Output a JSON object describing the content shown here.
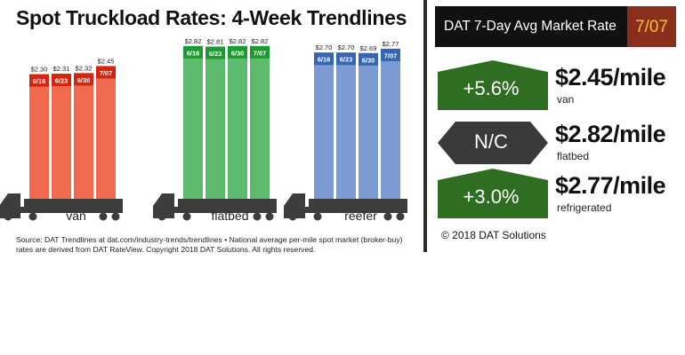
{
  "title": "Spot Truckload Rates: 4-Week Trendlines",
  "source": "Source: DAT Trendlines at dat.com/industry-trends/trendlines • National average per-mile spot market (broker-buy) rates are derived from DAT RateView. Copyright 2018 DAT Solutions. All rights reserved.",
  "chart_data": [
    {
      "type": "bar",
      "name": "van",
      "categories": [
        "6/16",
        "6/23",
        "6/30",
        "7/07"
      ],
      "values": [
        2.3,
        2.31,
        2.32,
        2.45
      ],
      "value_labels": [
        "$2.30",
        "$2.31",
        "$2.32",
        "$2.45"
      ],
      "label": "van",
      "color": "#ef6a4e",
      "date_color": "#d62411",
      "ylim": [
        0,
        2.9
      ]
    },
    {
      "type": "bar",
      "name": "flatbed",
      "categories": [
        "6/16",
        "6/23",
        "6/30",
        "7/07"
      ],
      "values": [
        2.82,
        2.81,
        2.82,
        2.82
      ],
      "value_labels": [
        "$2.82",
        "$2.81",
        "$2.82",
        "$2.82"
      ],
      "label": "flatbed",
      "color": "#5dbb6e",
      "date_color": "#1d9a2f",
      "ylim": [
        0,
        2.9
      ]
    },
    {
      "type": "bar",
      "name": "reefer",
      "categories": [
        "6/16",
        "6/23",
        "6/30",
        "7/07"
      ],
      "values": [
        2.7,
        2.7,
        2.69,
        2.77
      ],
      "value_labels": [
        "$2.70",
        "$2.70",
        "$2.69",
        "$2.77"
      ],
      "label": "reefer",
      "color": "#7b9bd2",
      "date_color": "#3466b5",
      "ylim": [
        0,
        2.9
      ]
    }
  ],
  "panel": {
    "title": "DAT 7-Day Avg Market Rate",
    "date": "7/07",
    "rows": [
      {
        "change": "+5.6%",
        "direction": "up",
        "rate": "$2.45/mile",
        "label": "van"
      },
      {
        "change": "N/C",
        "direction": "flat",
        "rate": "$2.82/mile",
        "label": "flatbed"
      },
      {
        "change": "+3.0%",
        "direction": "up",
        "rate": "$2.77/mile",
        "label": "refrigerated"
      }
    ],
    "copyright": "© 2018 DAT Solutions"
  }
}
